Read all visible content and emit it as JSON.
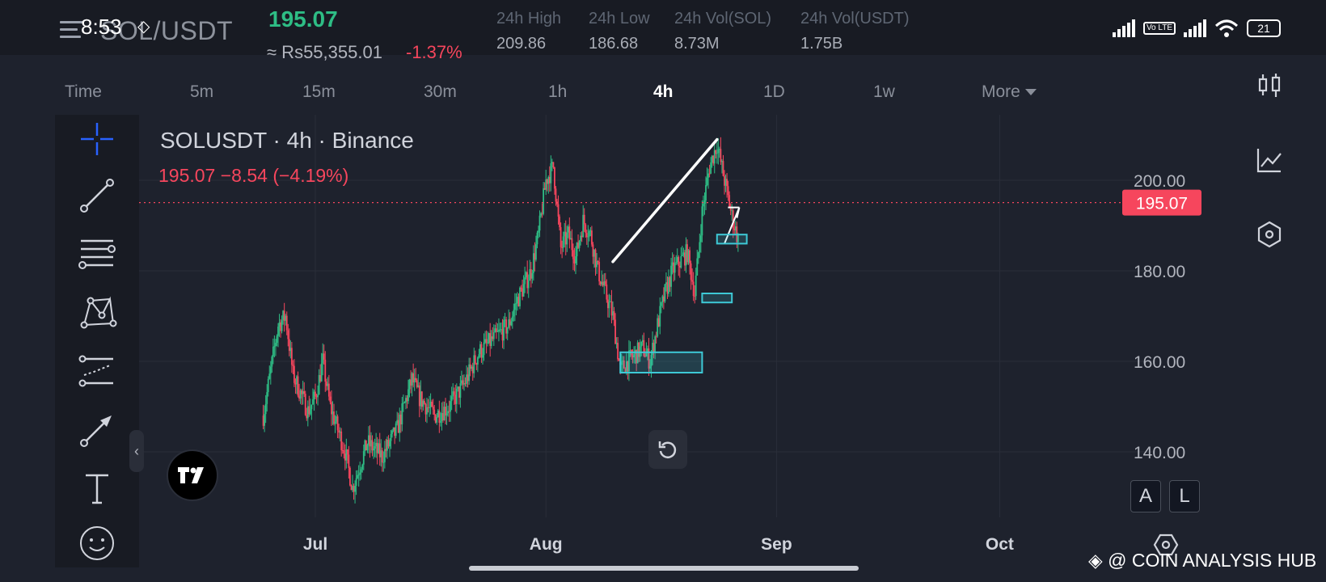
{
  "status_bar": {
    "time": "8:53",
    "volte_badge": "Vo LTE",
    "battery": "21"
  },
  "ticker": {
    "pair": "SOL/USDT",
    "last_price": "195.07",
    "fiat_price": "≈ Rs55,355.01",
    "change_pct": "-1.37%",
    "stats": [
      {
        "label": "24h High",
        "value": "209.86"
      },
      {
        "label": "24h Low",
        "value": "186.68"
      },
      {
        "label": "24h Vol(SOL)",
        "value": "8.73M"
      },
      {
        "label": "24h Vol(USDT)",
        "value": "1.75B"
      }
    ]
  },
  "timeframes": {
    "items": [
      "Time",
      "5m",
      "15m",
      "30m",
      "1h",
      "4h",
      "1D",
      "1w",
      "More"
    ],
    "active": "4h"
  },
  "legend": {
    "title": "SOLUSDT · 4h · Binance",
    "quote": "195.07  −8.54 (−4.19%)"
  },
  "tools": [
    "crosshair-icon",
    "trend-line-icon",
    "fib-lines-icon",
    "pattern-icon",
    "forecast-icon",
    "arrow-icon",
    "text-icon",
    "emoji-icon"
  ],
  "right_panel": [
    "candle-style-icon",
    "indicators-icon",
    "object-tree-icon"
  ],
  "scale_buttons": [
    "A",
    "L"
  ],
  "watermark": "@ COIN ANALYSIS HUB",
  "colors": {
    "up": "#2ebd85",
    "down": "#f6465d",
    "box": "#3ec9d6",
    "background": "#1e222d"
  },
  "chart_data": {
    "type": "candlestick",
    "symbol": "SOLUSDT",
    "interval": "4h",
    "exchange": "Binance",
    "y_ticks": [
      140,
      160,
      180,
      200
    ],
    "ylim": [
      128,
      218
    ],
    "x_ticks": [
      "Jul",
      "Aug",
      "Sep",
      "Oct"
    ],
    "current_price": 195.07,
    "current_price_label": "195.07",
    "price_path": [
      [
        "2024-06-24",
        148
      ],
      [
        "2024-06-26",
        168
      ],
      [
        "2024-06-27",
        170
      ],
      [
        "2024-06-28",
        157
      ],
      [
        "2024-06-30",
        149
      ],
      [
        "2024-07-01",
        152
      ],
      [
        "2024-07-02",
        160
      ],
      [
        "2024-07-03",
        150
      ],
      [
        "2024-07-05",
        140
      ],
      [
        "2024-07-06",
        132
      ],
      [
        "2024-07-08",
        142
      ],
      [
        "2024-07-10",
        139
      ],
      [
        "2024-07-12",
        145
      ],
      [
        "2024-07-14",
        156
      ],
      [
        "2024-07-15",
        152
      ],
      [
        "2024-07-17",
        148
      ],
      [
        "2024-07-19",
        150
      ],
      [
        "2024-07-21",
        155
      ],
      [
        "2024-07-23",
        162
      ],
      [
        "2024-07-25",
        165
      ],
      [
        "2024-07-27",
        168
      ],
      [
        "2024-07-28",
        173
      ],
      [
        "2024-07-30",
        180
      ],
      [
        "2024-07-31",
        188
      ],
      [
        "2024-08-01",
        200
      ],
      [
        "2024-08-02",
        203
      ],
      [
        "2024-08-03",
        185
      ],
      [
        "2024-08-04",
        188
      ],
      [
        "2024-08-05",
        183
      ],
      [
        "2024-08-06",
        191
      ],
      [
        "2024-08-07",
        188
      ],
      [
        "2024-08-08",
        180
      ],
      [
        "2024-08-10",
        170
      ],
      [
        "2024-08-11",
        158
      ],
      [
        "2024-08-12",
        160
      ],
      [
        "2024-08-14",
        163
      ],
      [
        "2024-08-15",
        160
      ],
      [
        "2024-08-16",
        168
      ],
      [
        "2024-08-17",
        175
      ],
      [
        "2024-08-18",
        180
      ],
      [
        "2024-08-20",
        184
      ],
      [
        "2024-08-21",
        175
      ],
      [
        "2024-08-22",
        193
      ],
      [
        "2024-08-23",
        203
      ],
      [
        "2024-08-24",
        208
      ],
      [
        "2024-08-25",
        200
      ],
      [
        "2024-08-26",
        192
      ],
      [
        "2024-08-27",
        186
      ]
    ],
    "annotations": {
      "trend_line": [
        [
          "2024-08-10",
          182
        ],
        [
          "2024-08-24",
          209
        ]
      ],
      "arrow": [
        [
          "2024-08-25",
          186
        ],
        [
          "2024-08-27",
          194
        ]
      ],
      "boxes": [
        {
          "x0": "2024-08-11",
          "x1": "2024-08-22",
          "y0": 157.5,
          "y1": 162
        },
        {
          "x0": "2024-08-22",
          "x1": "2024-08-26",
          "y0": 173,
          "y1": 175
        },
        {
          "x0": "2024-08-24",
          "x1": "2024-08-28",
          "y0": 186,
          "y1": 188
        }
      ]
    }
  }
}
